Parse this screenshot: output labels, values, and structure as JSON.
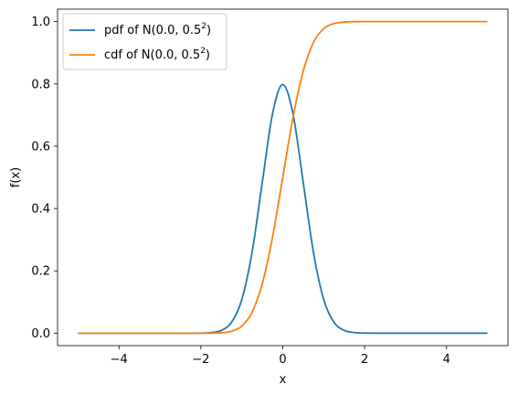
{
  "chart_data": {
    "type": "line",
    "xlabel": "x",
    "ylabel": "f(x)",
    "xlim": [
      -5.5,
      5.5
    ],
    "ylim": [
      -0.04,
      1.04
    ],
    "xticks": [
      -4,
      -2,
      0,
      2,
      4
    ],
    "xtick_labels": [
      "−4",
      "−2",
      "0",
      "2",
      "4"
    ],
    "yticks": [
      0.0,
      0.2,
      0.4,
      0.6,
      0.8,
      1.0
    ],
    "ytick_labels": [
      "0.0",
      "0.2",
      "0.4",
      "0.6",
      "0.8",
      "1.0"
    ],
    "grid": false,
    "legend_position": "upper-left",
    "series": [
      {
        "name": "pdf of N(0.0, 0.5²)",
        "legend_main": "pdf of N(0.0, 0.5",
        "legend_sup": "2",
        "legend_tail": ")",
        "color": "#1f77b4",
        "x": [
          -5,
          -2.5,
          -2,
          -1.75,
          -1.5,
          -1.25,
          -1,
          -0.75,
          -0.5,
          -0.25,
          0,
          0.25,
          0.5,
          0.75,
          1,
          1.25,
          1.5,
          1.75,
          2,
          2.5,
          5
        ],
        "y": [
          0,
          0.0,
          0.0003,
          0.0018,
          0.0089,
          0.0351,
          0.108,
          0.259,
          0.4839,
          0.7041,
          0.7979,
          0.7041,
          0.4839,
          0.259,
          0.108,
          0.0351,
          0.0089,
          0.0018,
          0.0003,
          0.0,
          0
        ]
      },
      {
        "name": "cdf of N(0.0, 0.5²)",
        "legend_main": "cdf of N(0.0, 0.5",
        "legend_sup": "2",
        "legend_tail": ")",
        "color": "#ff7f0e",
        "x": [
          -5,
          -2.5,
          -2,
          -1.75,
          -1.5,
          -1.25,
          -1,
          -0.75,
          -0.5,
          -0.25,
          0,
          0.25,
          0.5,
          0.75,
          1,
          1.25,
          1.5,
          1.75,
          2,
          2.5,
          5
        ],
        "y": [
          0,
          0.0,
          0.0,
          0.0002,
          0.0013,
          0.0062,
          0.0228,
          0.0668,
          0.1587,
          0.3085,
          0.5,
          0.6915,
          0.8413,
          0.9332,
          0.9772,
          0.9938,
          0.9987,
          0.9998,
          1.0,
          1.0,
          1.0
        ]
      }
    ]
  }
}
